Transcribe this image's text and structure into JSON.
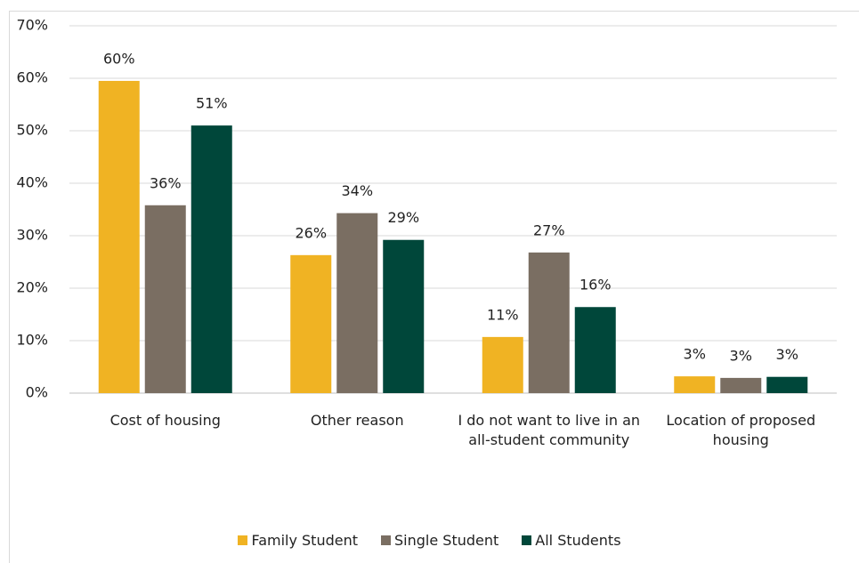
{
  "chart_data": {
    "type": "bar",
    "categories": [
      "Cost of housing",
      "Other reason",
      "I do not want to live in an all-student community",
      "Location of proposed housing"
    ],
    "series": [
      {
        "name": "Family Student",
        "color": "#F0B323",
        "values": [
          59.5,
          26.3,
          10.7,
          3.2
        ],
        "value_labels": [
          "60%",
          "26%",
          "11%",
          "3%"
        ]
      },
      {
        "name": "Single Student",
        "color": "#7A6E62",
        "values": [
          35.8,
          34.3,
          26.8,
          2.9
        ],
        "value_labels": [
          "36%",
          "34%",
          "27%",
          "3%"
        ]
      },
      {
        "name": "All Students",
        "color": "#00473A",
        "values": [
          51.0,
          29.2,
          16.4,
          3.1
        ],
        "value_labels": [
          "51%",
          "29%",
          "16%",
          "3%"
        ]
      }
    ],
    "ylim": [
      0,
      70
    ],
    "yticks": [
      {
        "value": 0,
        "label": "0%"
      },
      {
        "value": 10,
        "label": "10%"
      },
      {
        "value": 20,
        "label": "20%"
      },
      {
        "value": 30,
        "label": "30%"
      },
      {
        "value": 40,
        "label": "40%"
      },
      {
        "value": 50,
        "label": "50%"
      },
      {
        "value": 60,
        "label": "60%"
      },
      {
        "value": 70,
        "label": "70%"
      }
    ],
    "grid": true,
    "legend": "bottom"
  }
}
